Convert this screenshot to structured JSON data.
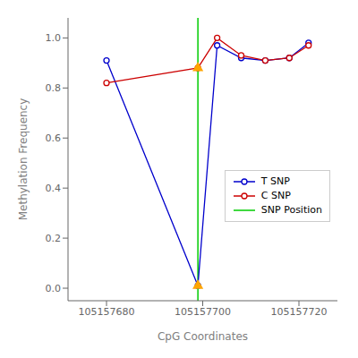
{
  "chart_data": {
    "type": "line",
    "xlabel": "CpG Coordinates",
    "ylabel": "Methylation Frequency",
    "xlim": [
      105157672,
      105157728
    ],
    "ylim": [
      -0.05,
      1.08
    ],
    "xticks": [
      105157680,
      105157700,
      105157720
    ],
    "yticks": [
      {
        "value": 0,
        "label": "0.0"
      },
      0.2,
      0.4,
      0.6,
      0.8,
      {
        "value": 1,
        "label": "1.0"
      }
    ],
    "grid": false,
    "legend": "lower right",
    "series": [
      {
        "name": "T SNP",
        "color": "#0000CC",
        "marker": "circle",
        "x": [
          105157680,
          105157699,
          105157703,
          105157708,
          105157713,
          105157718,
          105157722
        ],
        "values": [
          0.91,
          0.01,
          0.97,
          0.92,
          0.91,
          0.92,
          0.98
        ]
      },
      {
        "name": "C SNP",
        "color": "#CC0000",
        "marker": "circle",
        "x": [
          105157680,
          105157699,
          105157703,
          105157708,
          105157713,
          105157718,
          105157722
        ],
        "values": [
          0.82,
          0.88,
          1.0,
          0.93,
          0.91,
          0.92,
          0.97
        ]
      },
      {
        "name": "SNP Position",
        "type": "vline",
        "color": "#00CC00",
        "x": 105157699
      }
    ],
    "markers": {
      "x": [
        105157699,
        105157699
      ],
      "y": [
        0.01,
        0.88
      ],
      "color": "#FFA500",
      "marker": "triangle"
    }
  }
}
